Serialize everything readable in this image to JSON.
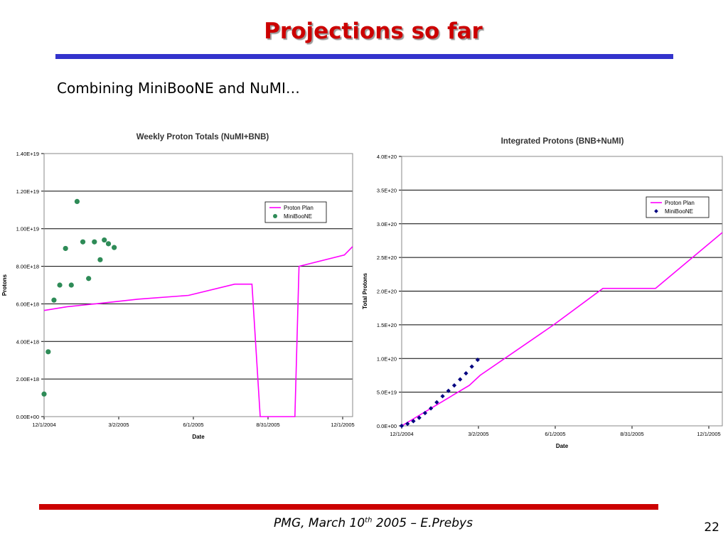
{
  "slide": {
    "title": "Projections so far",
    "subtitle": "Combining MiniBooNE and NuMI…",
    "footer_main": "PMG, March 10",
    "footer_sup": "th",
    "footer_tail": " 2005 – E.Prebys",
    "page_number": "22"
  },
  "colors": {
    "title": "#cc0000",
    "top_rule": "#3333cc",
    "bottom_rule": "#cc0000",
    "proton_plan": "#ff00ff",
    "miniboone_weekly": "#2e8b57",
    "miniboone_integrated": "#000080"
  },
  "chart_data": [
    {
      "type": "line",
      "title": "Weekly Proton Totals (NuMI+BNB)",
      "xlabel": "Date",
      "ylabel": "Protons",
      "x_tick_labels": [
        "12/1/2004",
        "3/2/2005",
        "6/1/2005",
        "8/31/2005",
        "12/1/2005"
      ],
      "y_tick_labels": [
        "0.00E+00",
        "2.00E+18",
        "4.00E+18",
        "6.00E+18",
        "8.00E+18",
        "1.00E+19",
        "1.20E+19",
        "1.40E+19"
      ],
      "xlim": [
        "2004-12-01",
        "2005-12-10"
      ],
      "ylim": [
        0,
        1.4e+19
      ],
      "grid": "horizontal",
      "legend": "top-right",
      "series": [
        {
          "name": "Proton Plan",
          "style": "line",
          "points": [
            [
              "2004-12-01",
              5.65e+18
            ],
            [
              "2004-12-29",
              5.85e+18
            ],
            [
              "2005-02-01",
              6e+18
            ],
            [
              "2005-03-25",
              6.25e+18
            ],
            [
              "2005-05-25",
              6.45e+18
            ],
            [
              "2005-07-20",
              7.05e+18
            ],
            [
              "2005-08-10",
              7.05e+18
            ],
            [
              "2005-08-20",
              0
            ],
            [
              "2005-10-01",
              0
            ],
            [
              "2005-10-06",
              8e+18
            ],
            [
              "2005-11-30",
              8.6e+18
            ],
            [
              "2005-12-10",
              9.05e+18
            ]
          ]
        },
        {
          "name": "MiniBooNE",
          "style": "markers",
          "points": [
            [
              "2004-12-01",
              1.2e+18
            ],
            [
              "2004-12-06",
              3.45e+18
            ],
            [
              "2004-12-13",
              6.2e+18
            ],
            [
              "2004-12-20",
              7e+18
            ],
            [
              "2004-12-27",
              8.95e+18
            ],
            [
              "2005-01-03",
              7e+18
            ],
            [
              "2005-01-10",
              1.145e+19
            ],
            [
              "2005-01-17",
              9.3e+18
            ],
            [
              "2005-01-24",
              7.35e+18
            ],
            [
              "2005-01-31",
              9.3e+18
            ],
            [
              "2005-02-07",
              8.35e+18
            ],
            [
              "2005-02-12",
              9.4e+18
            ],
            [
              "2005-02-17",
              9.2e+18
            ],
            [
              "2005-02-24",
              9e+18
            ]
          ]
        }
      ]
    },
    {
      "type": "line",
      "title": "Integrated Protons (BNB+NuMI)",
      "xlabel": "Date",
      "ylabel": "Total Protons",
      "x_tick_labels": [
        "12/1/2004",
        "3/2/2005",
        "6/1/2005",
        "8/31/2005",
        "12/1/2005"
      ],
      "y_tick_labels": [
        "0.0E+00",
        "5.0E+19",
        "1.0E+20",
        "1.5E+20",
        "2.0E+20",
        "2.5E+20",
        "3.0E+20",
        "3.5E+20",
        "4.0E+20"
      ],
      "xlim": [
        "2004-12-01",
        "2005-12-20"
      ],
      "ylim": [
        0,
        4e+20
      ],
      "grid": "horizontal",
      "legend": "top-right",
      "series": [
        {
          "name": "Proton Plan",
          "style": "line",
          "points": [
            [
              "2004-12-01",
              0
            ],
            [
              "2005-02-20",
              6e+19
            ],
            [
              "2005-03-05",
              7.5e+19
            ],
            [
              "2005-06-01",
              1.5e+20
            ],
            [
              "2005-07-30",
              2.04e+20
            ],
            [
              "2005-10-01",
              2.04e+20
            ],
            [
              "2005-12-20",
              2.87e+20
            ]
          ]
        },
        {
          "name": "MiniBooNE",
          "style": "markers",
          "points": [
            [
              "2004-12-01",
              0
            ],
            [
              "2004-12-08",
              3e+18
            ],
            [
              "2004-12-15",
              7e+18
            ],
            [
              "2004-12-22",
              1.2e+19
            ],
            [
              "2004-12-29",
              1.9e+19
            ],
            [
              "2005-01-05",
              2.6e+19
            ],
            [
              "2005-01-12",
              3.5e+19
            ],
            [
              "2005-01-19",
              4.4e+19
            ],
            [
              "2005-01-26",
              5.2e+19
            ],
            [
              "2005-02-02",
              6e+19
            ],
            [
              "2005-02-09",
              6.9e+19
            ],
            [
              "2005-02-16",
              7.8e+19
            ],
            [
              "2005-02-23",
              8.8e+19
            ],
            [
              "2005-03-02",
              9.8e+19
            ]
          ]
        }
      ]
    }
  ]
}
